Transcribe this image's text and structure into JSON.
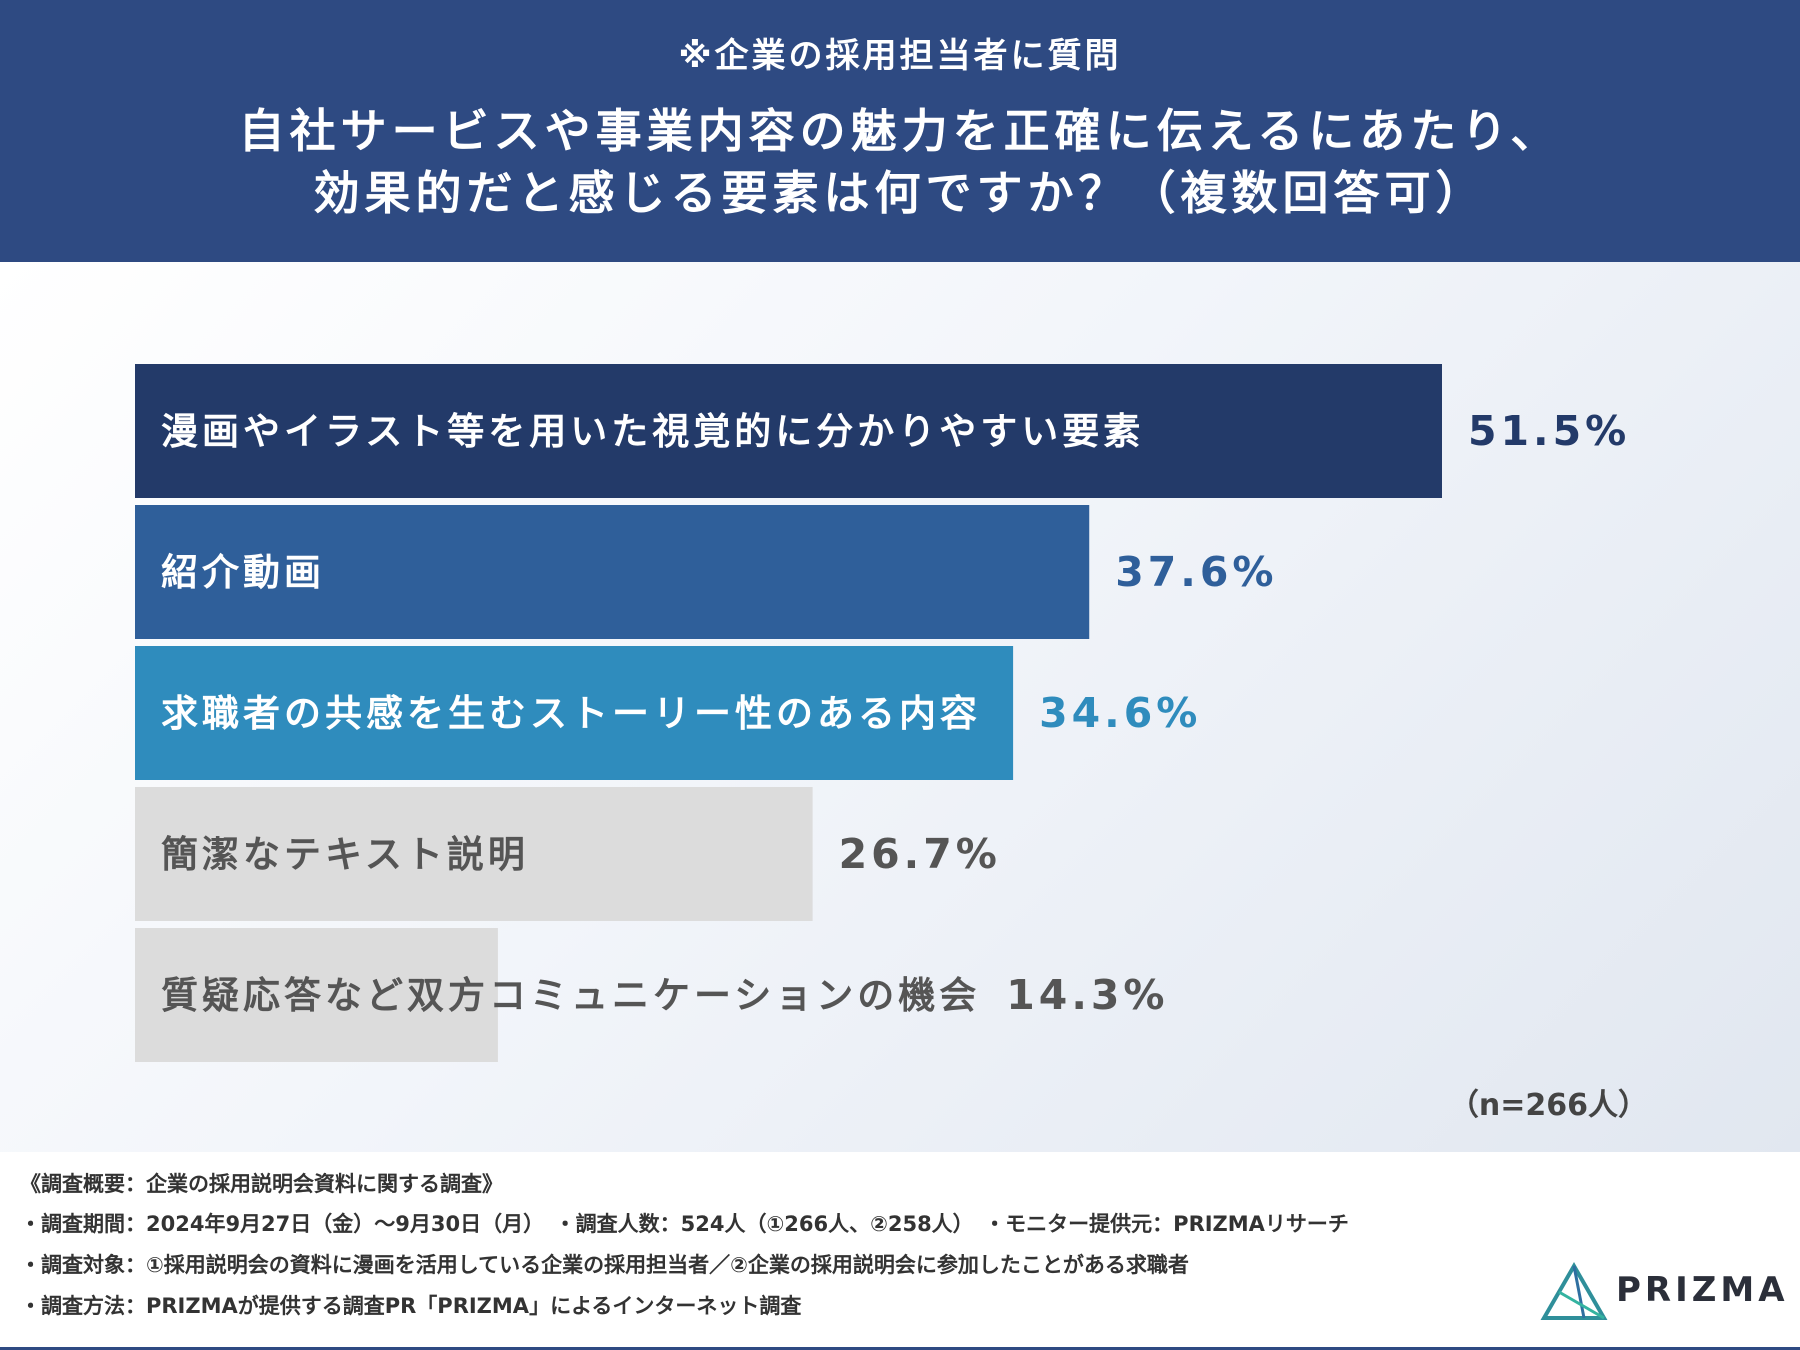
{
  "header": {
    "note": "※企業の採用担当者に質問",
    "title_line1": "自社サービスや事業内容の魅力を正確に伝えるにあたり、",
    "title_line2": "効果的だと感じる要素は何ですか？（複数回答可）",
    "background": "#2e4a82"
  },
  "chart_data": {
    "type": "bar",
    "orientation": "horizontal",
    "unit": "%",
    "categories": [
      "漫画やイラスト等を用いた視覚的に分かりやすい要素",
      "紹介動画",
      "求職者の共感を生むストーリー性のある内容",
      "簡潔なテキスト説明",
      "質疑応答など双方コミュニケーションの機会"
    ],
    "values": [
      51.5,
      37.6,
      34.6,
      26.7,
      14.3
    ],
    "value_labels": [
      "51.5%",
      "37.6%",
      "34.6%",
      "26.7%",
      "14.3%"
    ],
    "bar_colors": [
      "#233a69",
      "#2f5f9a",
      "#2f8cbd",
      "#dcdcdc",
      "#dcdcdc"
    ],
    "bar_label_colors": [
      "#ffffff",
      "#ffffff",
      "#ffffff",
      "#555555",
      "#555555"
    ],
    "value_label_colors": [
      "#233a69",
      "#2f5f9a",
      "#2f8cbd",
      "#555555",
      "#555555"
    ],
    "sample_size": "（n=266人）",
    "xlim": [
      0,
      51.5
    ],
    "grid": false
  },
  "footer": {
    "survey_title": "《調査概要：企業の採用説明会資料に関する調査》",
    "period": "・調査期間：2024年9月27日（金）〜9月30日（月）　・調査人数：524人（①266人、②258人）　・モニター提供元：PRIZMAリサーチ",
    "target": "・調査対象：①採用説明会の資料に漫画を活用している企業の採用担当者／②企業の採用説明会に参加したことがある求職者",
    "method": "・調査方法：PRIZMAが提供する調査PR「PRIZMA」によるインターネット調査",
    "logo_text": "PRIZMA"
  }
}
